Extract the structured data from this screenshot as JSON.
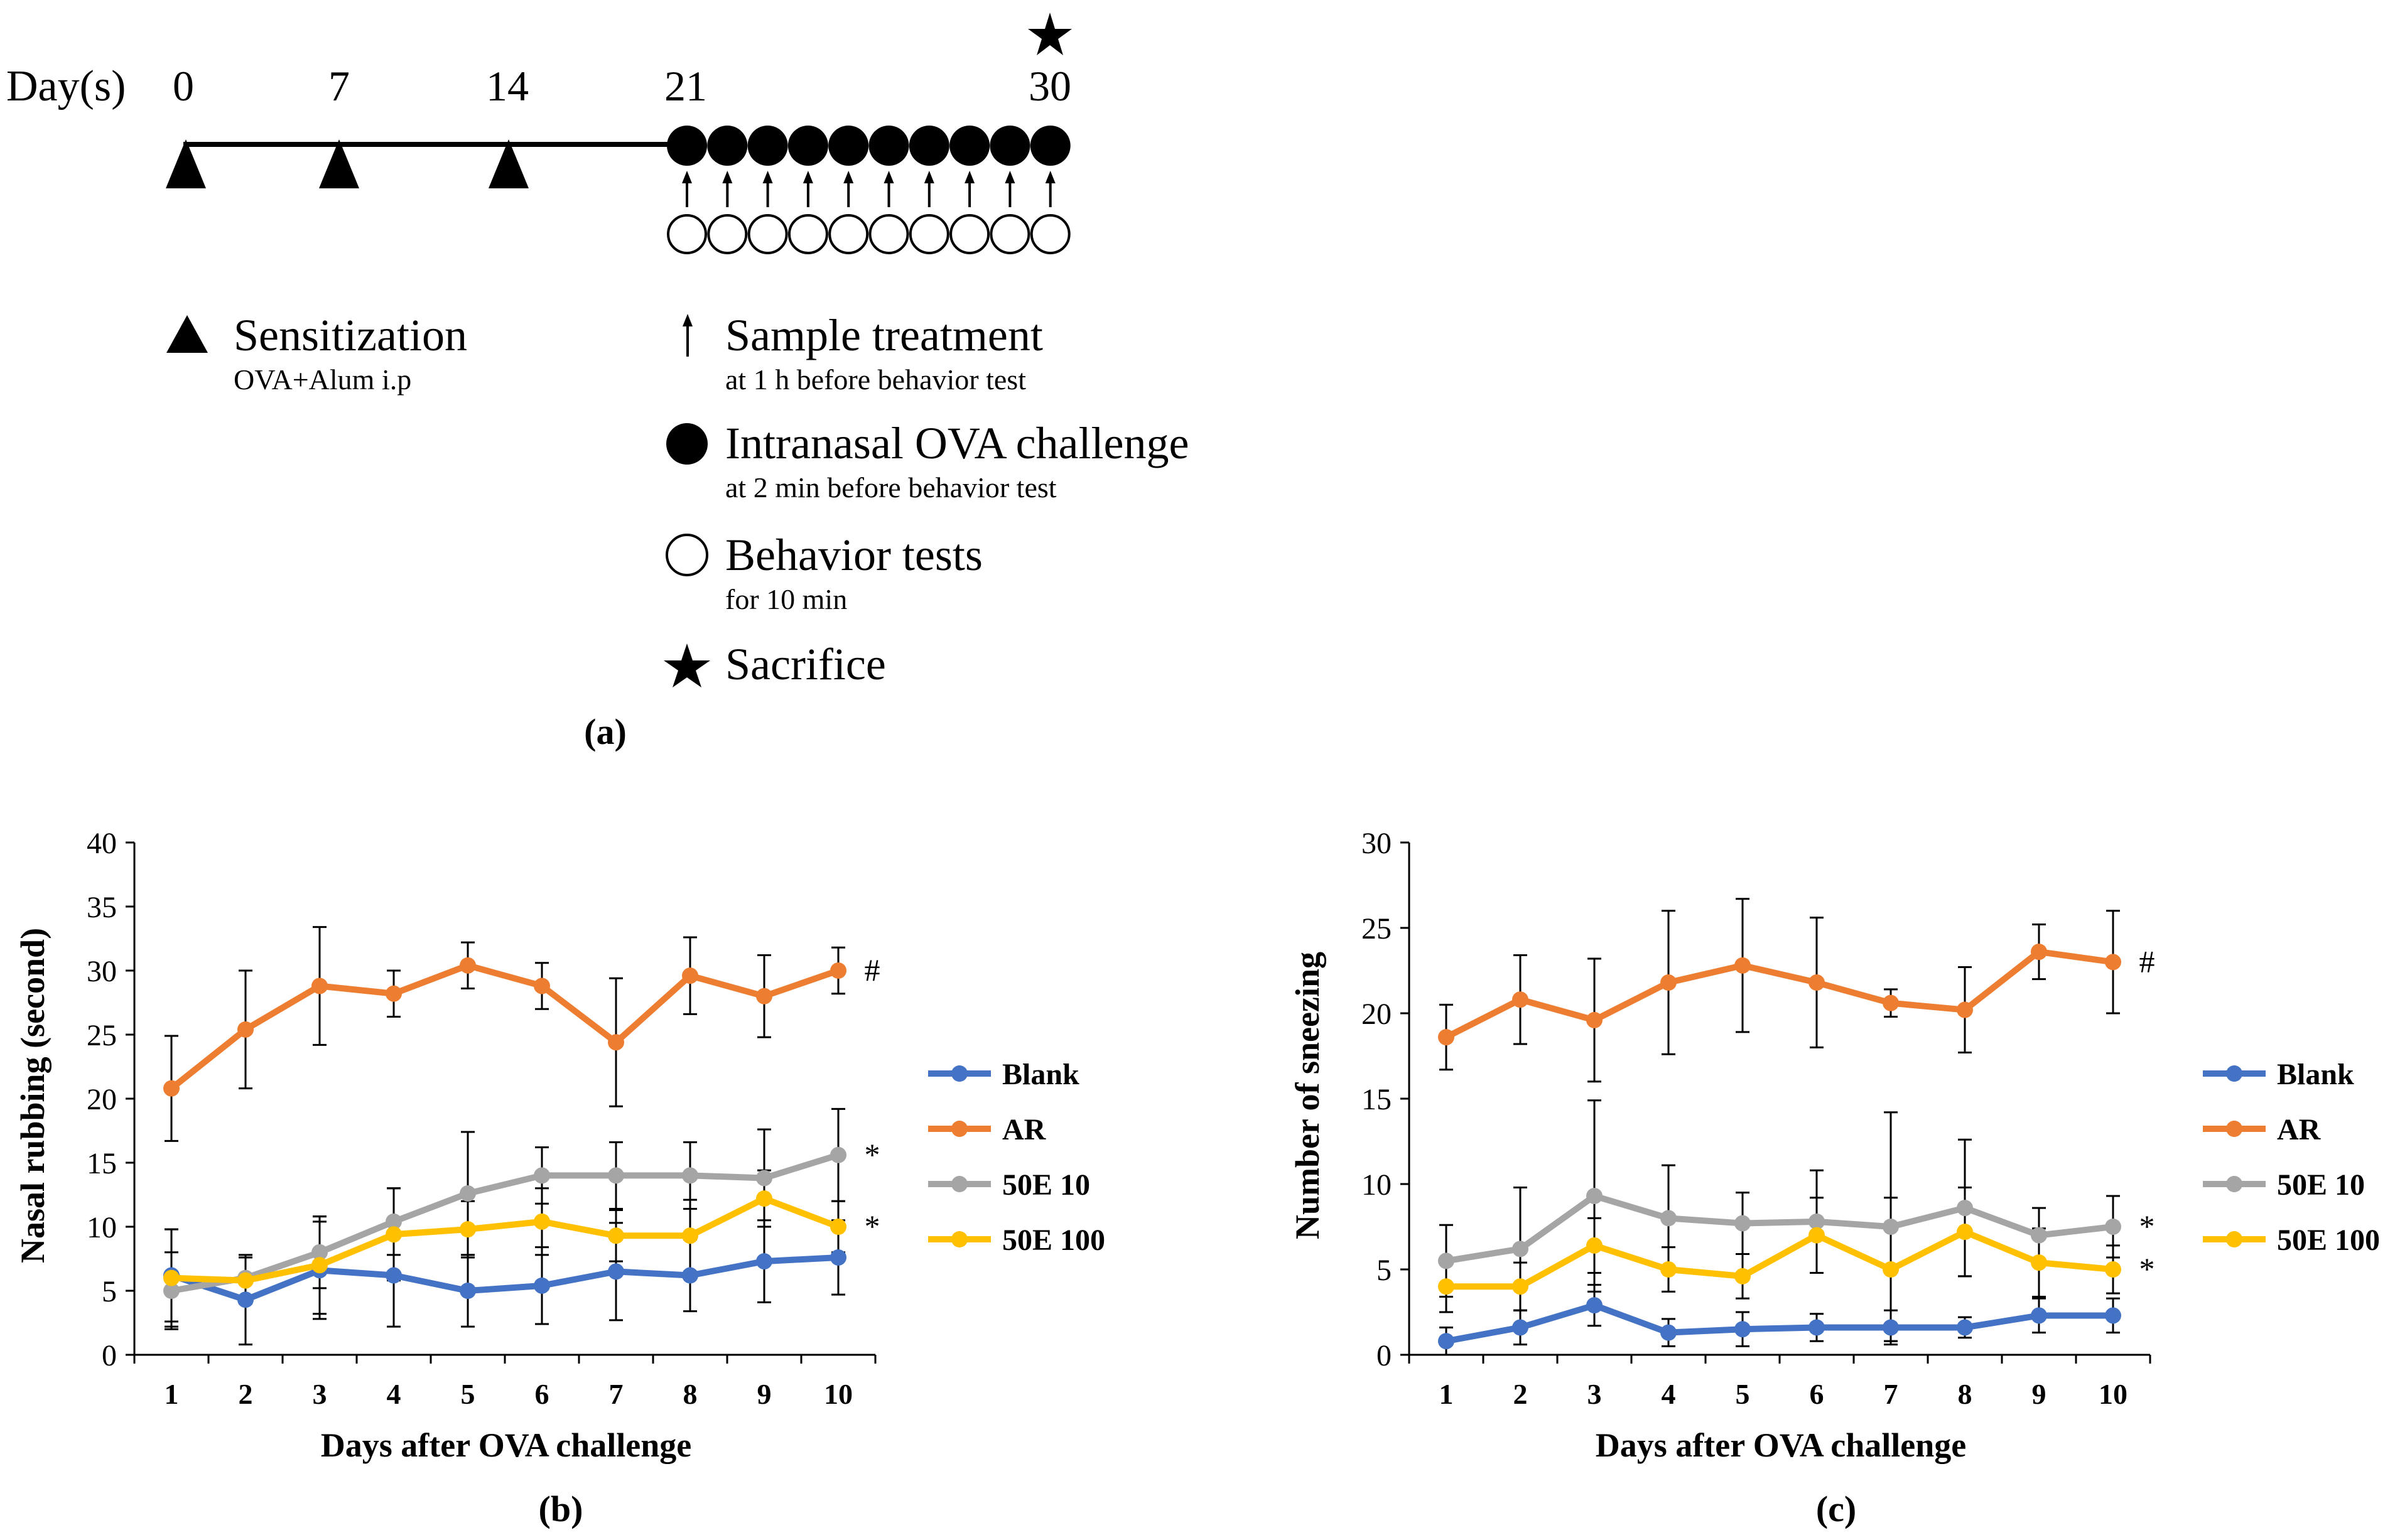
{
  "timeline": {
    "days_label": "Day(s)",
    "days": [
      "0",
      "7",
      "14",
      "21",
      "30"
    ],
    "legend": {
      "sensitization": "Sensitization",
      "sensitization_sub": "OVA+Alum i.p",
      "treatment": "Sample treatment",
      "treatment_sub": "at 1 h before behavior test",
      "challenge": "Intranasal OVA challenge",
      "challenge_sub": "at 2 min before behavior test",
      "behavior": "Behavior tests",
      "behavior_sub": "for 10 min",
      "sacrifice": "Sacrifice"
    },
    "panel_label": "(a)"
  },
  "chart_data": [
    {
      "type": "line",
      "panel_label": "(b)",
      "title": "",
      "xlabel": "Days after OVA challenge",
      "ylabel": "Nasal rubbing (second)",
      "x": [
        1,
        2,
        3,
        4,
        5,
        6,
        7,
        8,
        9,
        10
      ],
      "xlim": [
        0.5,
        10.5
      ],
      "ylim": [
        0,
        40
      ],
      "yticks": [
        0,
        5,
        10,
        15,
        20,
        25,
        30,
        35,
        40
      ],
      "grid": false,
      "legend_position": "right",
      "series": [
        {
          "name": "Blank",
          "color": "#4472C4",
          "values": [
            6.2,
            4.3,
            6.6,
            6.2,
            5.0,
            5.4,
            6.5,
            6.2,
            7.3,
            7.6
          ],
          "errors": [
            3.6,
            3.5,
            3.8,
            4.0,
            2.8,
            3.0,
            3.8,
            2.8,
            3.2,
            2.9
          ],
          "marker": ""
        },
        {
          "name": "AR",
          "color": "#ED7D31",
          "values": [
            20.8,
            25.4,
            28.8,
            28.2,
            30.4,
            28.8,
            24.4,
            29.6,
            28.0,
            30.0
          ],
          "errors": [
            4.1,
            4.6,
            4.6,
            1.8,
            1.8,
            1.8,
            5.0,
            3.0,
            3.2,
            1.8
          ],
          "marker": "#"
        },
        {
          "name": "50E 10",
          "color": "#A5A5A5",
          "values": [
            5.0,
            6.0,
            8.0,
            10.4,
            12.6,
            14.0,
            14.0,
            14.0,
            13.8,
            15.6
          ],
          "errors": [
            3.0,
            1.6,
            2.8,
            2.6,
            4.8,
            2.2,
            2.6,
            2.6,
            3.8,
            3.6
          ],
          "marker": "*"
        },
        {
          "name": "50E 100",
          "color": "#FFC000",
          "values": [
            6.0,
            5.8,
            7.0,
            9.4,
            9.8,
            10.4,
            9.3,
            9.3,
            12.2,
            10.0
          ],
          "errors": [
            3.8,
            1.8,
            3.8,
            3.6,
            2.2,
            2.6,
            2.0,
            2.8,
            2.2,
            2.0
          ],
          "marker": "*"
        }
      ]
    },
    {
      "type": "line",
      "panel_label": "(c)",
      "title": "",
      "xlabel": "Days after OVA challenge",
      "ylabel": "Number of sneezing",
      "x": [
        1,
        2,
        3,
        4,
        5,
        6,
        7,
        8,
        9,
        10
      ],
      "xlim": [
        0.5,
        10.5
      ],
      "ylim": [
        0,
        30
      ],
      "yticks": [
        0,
        5,
        10,
        15,
        20,
        25,
        30
      ],
      "grid": false,
      "legend_position": "right",
      "series": [
        {
          "name": "Blank",
          "color": "#4472C4",
          "values": [
            0.8,
            1.6,
            2.9,
            1.3,
            1.5,
            1.6,
            1.6,
            1.6,
            2.3,
            2.3
          ],
          "errors": [
            0.8,
            1.0,
            1.2,
            0.8,
            1.0,
            0.8,
            1.0,
            0.6,
            1.0,
            1.0
          ],
          "marker": ""
        },
        {
          "name": "AR",
          "color": "#ED7D31",
          "values": [
            18.6,
            20.8,
            19.6,
            21.8,
            22.8,
            21.8,
            20.6,
            20.2,
            23.6,
            23.0
          ],
          "errors": [
            1.9,
            2.6,
            3.6,
            4.2,
            3.9,
            3.8,
            0.8,
            2.5,
            1.6,
            3.0
          ],
          "marker": "#"
        },
        {
          "name": "50E 10",
          "color": "#A5A5A5",
          "values": [
            5.5,
            6.2,
            9.3,
            8.0,
            7.7,
            7.8,
            7.5,
            8.6,
            7.0,
            7.5
          ],
          "errors": [
            2.1,
            3.6,
            5.6,
            3.1,
            1.8,
            3.0,
            6.7,
            4.0,
            1.6,
            1.8
          ],
          "marker": "*"
        },
        {
          "name": "50E 100",
          "color": "#FFC000",
          "values": [
            4.0,
            4.0,
            6.4,
            5.0,
            4.6,
            7.0,
            5.0,
            7.2,
            5.4,
            5.0
          ],
          "errors": [
            1.5,
            1.4,
            1.6,
            1.3,
            1.3,
            2.2,
            4.2,
            2.6,
            2.0,
            1.4
          ],
          "marker": "*"
        }
      ]
    }
  ]
}
